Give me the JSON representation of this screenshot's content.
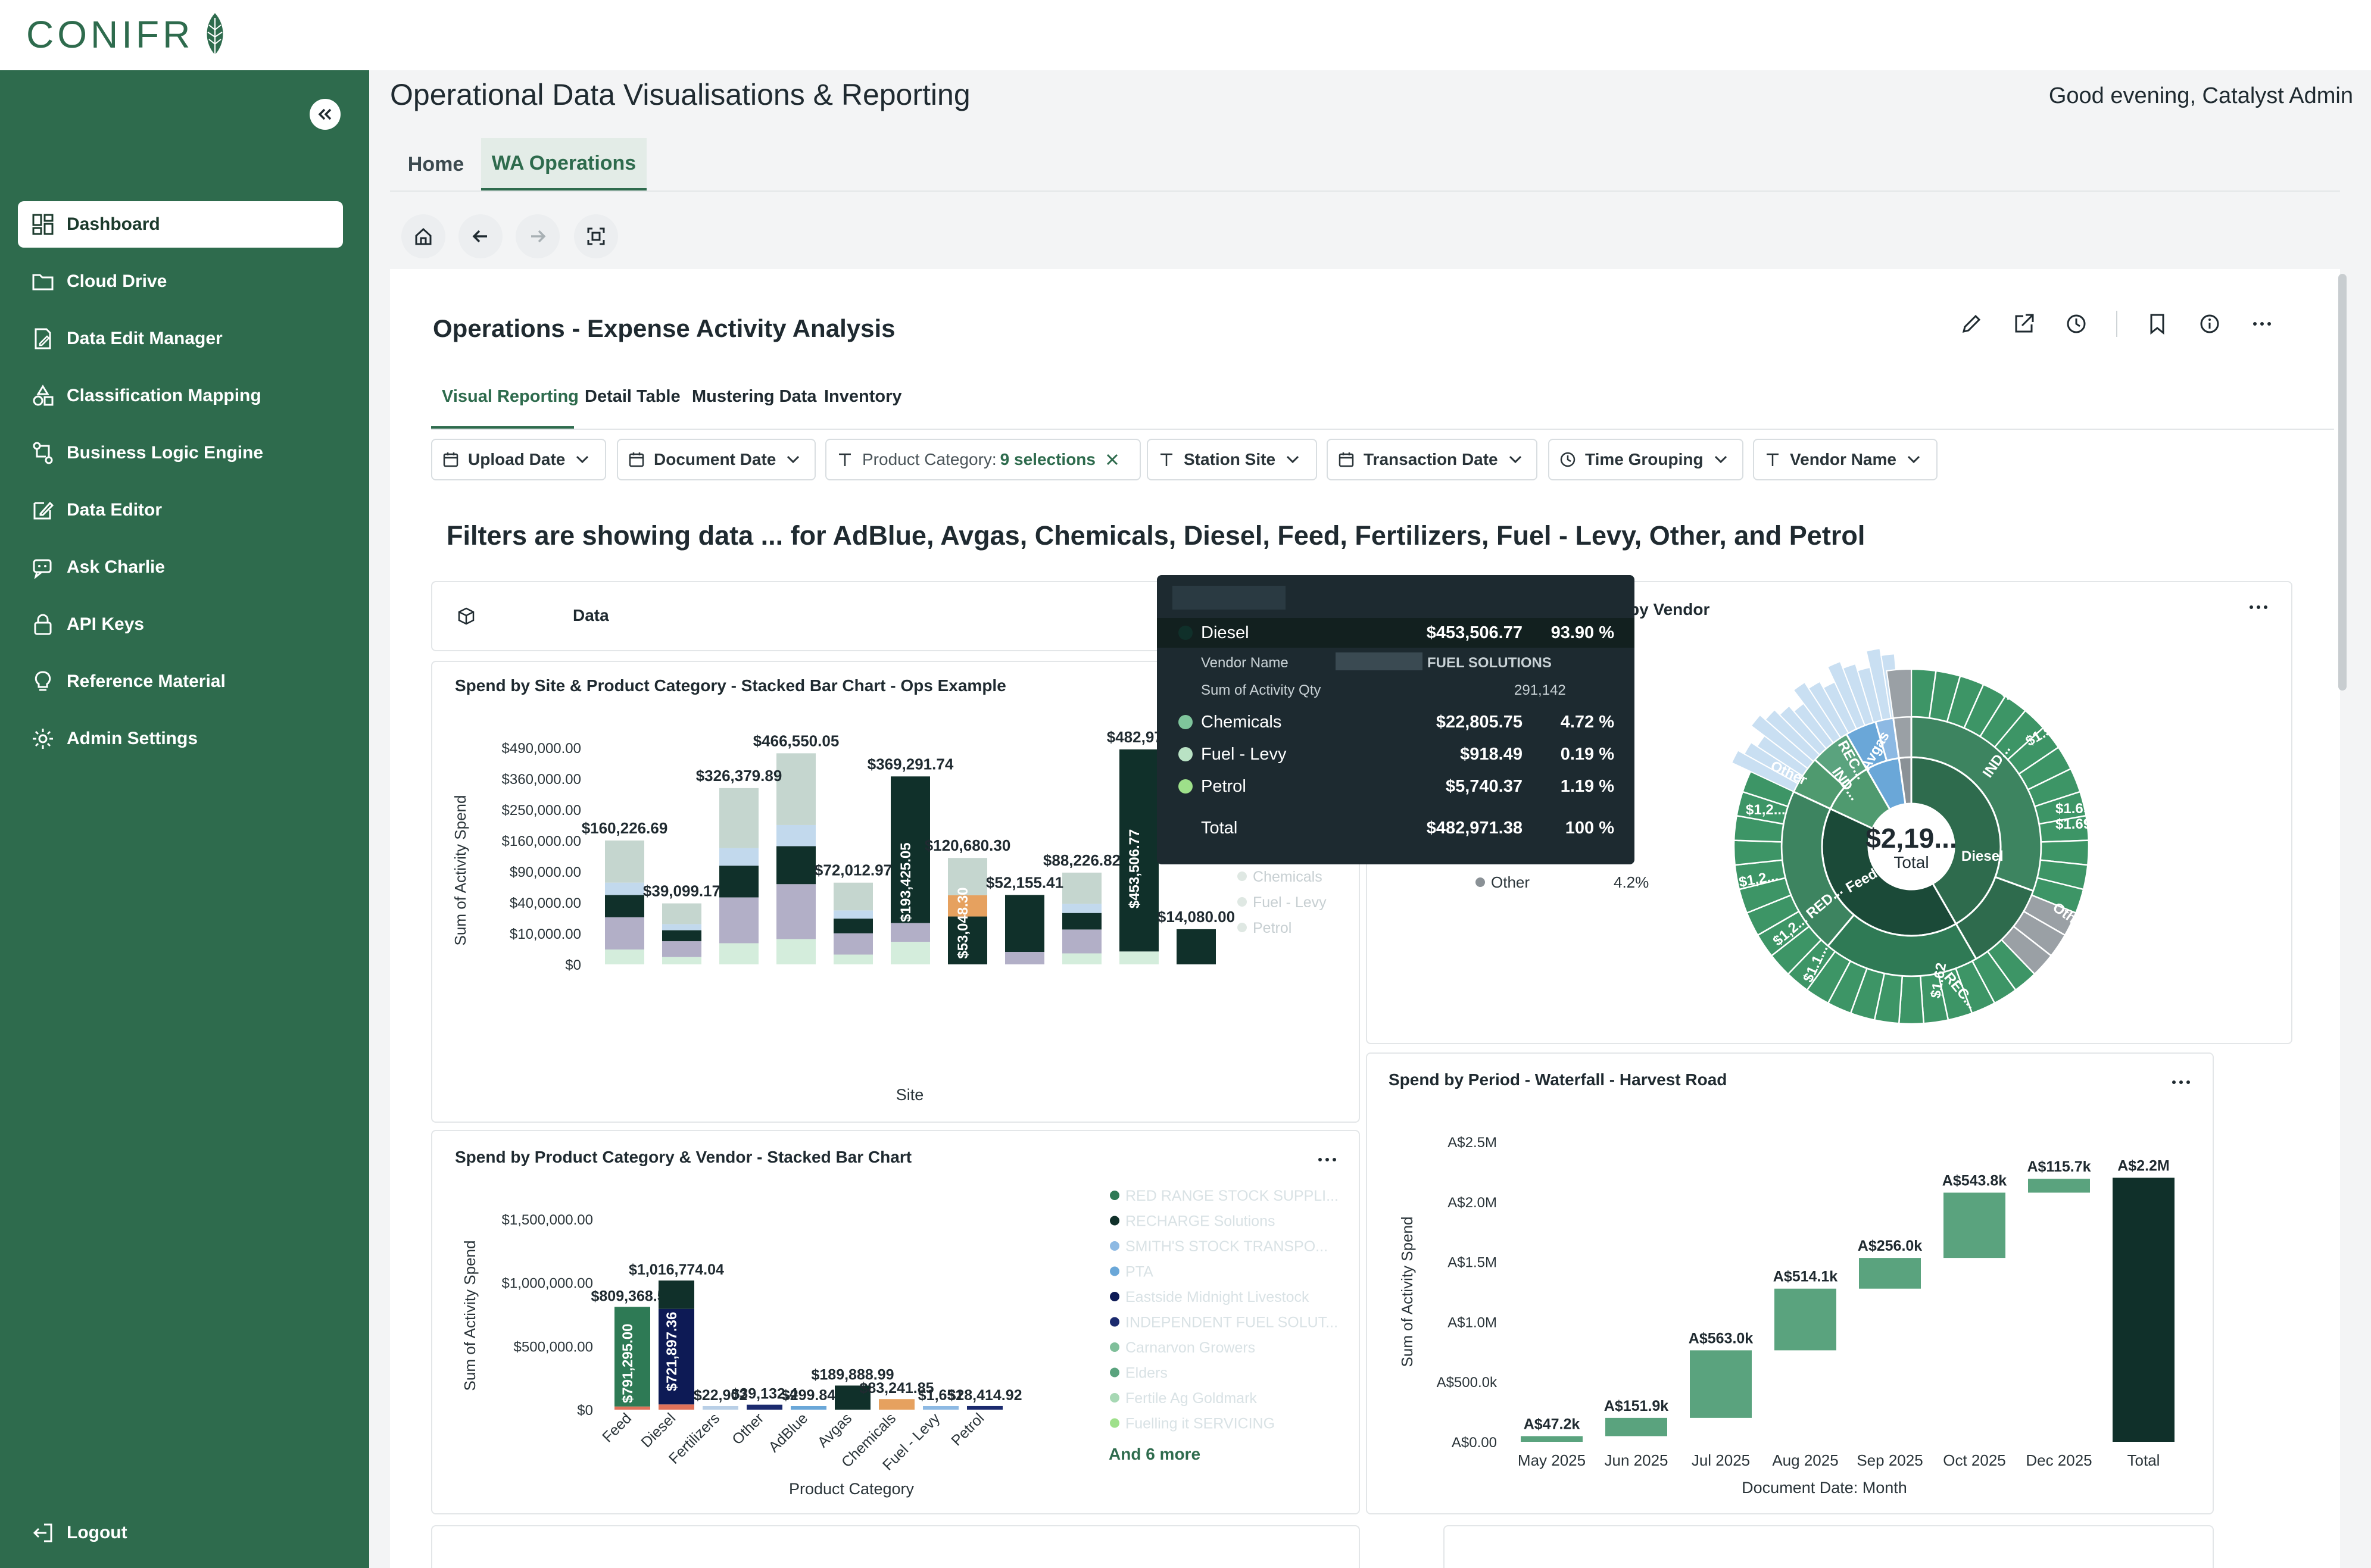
{
  "brand": {
    "logo_text": "CONIFR"
  },
  "header": {
    "title": "Operational Data Visualisations & Reporting",
    "greeting": "Good evening, Catalyst Admin"
  },
  "top_tabs": [
    {
      "label": "Home"
    },
    {
      "label": "WA Operations"
    }
  ],
  "sidebar": {
    "items": [
      {
        "label": "Dashboard",
        "icon": "dashboard-icon"
      },
      {
        "label": "Cloud Drive",
        "icon": "folder-icon"
      },
      {
        "label": "Data Edit Manager",
        "icon": "edit-doc-icon"
      },
      {
        "label": "Classification Mapping",
        "icon": "shapes-icon"
      },
      {
        "label": "Business Logic Engine",
        "icon": "flow-icon"
      },
      {
        "label": "Data Editor",
        "icon": "edit-icon"
      },
      {
        "label": "Ask Charlie",
        "icon": "chat-bot-icon"
      },
      {
        "label": "API Keys",
        "icon": "lock-icon"
      },
      {
        "label": "Reference Material",
        "icon": "lightbulb-icon"
      },
      {
        "label": "Admin Settings",
        "icon": "gear-icon"
      }
    ],
    "logout": "Logout"
  },
  "dashboard": {
    "title": "Operations - Expense Activity Analysis",
    "tabs": [
      {
        "label": "Visual Reporting"
      },
      {
        "label": "Detail Table"
      },
      {
        "label": "Mustering Data"
      },
      {
        "label": "Inventory"
      }
    ],
    "filters": [
      {
        "label": "Upload Date"
      },
      {
        "label": "Document Date"
      },
      {
        "label": "Product Category:",
        "value": "9 selections"
      },
      {
        "label": "Station Site"
      },
      {
        "label": "Transaction Date"
      },
      {
        "label": "Time Grouping"
      },
      {
        "label": "Vendor Name"
      }
    ],
    "filter_summary": "Filters are showing data ... for AdBlue, Avgas, Chemicals, Diesel, Feed, Fertilizers, Fuel - Levy, Other, and Petrol",
    "data_card_label": "Data"
  },
  "tooltip": {
    "rows": [
      {
        "name": "Diesel",
        "value": "$453,506.77",
        "pct": "93.90 %"
      },
      {
        "name": "Chemicals",
        "value": "$22,805.75",
        "pct": "4.72 %"
      },
      {
        "name": "Fuel - Levy",
        "value": "$918.49",
        "pct": "0.19 %"
      },
      {
        "name": "Petrol",
        "value": "$5,740.37",
        "pct": "1.19 %"
      }
    ],
    "vendor_label": "Vendor Name",
    "vendor_value": "FUEL SOLUTIONS",
    "qty_label": "Sum of Activity Qty",
    "qty_value": "291,142",
    "total_label": "Total",
    "total_value": "$482,971.38",
    "total_pct": "100 %"
  },
  "chart_data": [
    {
      "type": "bar",
      "title": "Spend by Site & Product Category - Stacked Bar Chart - Ops Example",
      "xlabel": "Site",
      "ylabel": "Sum of Activity Spend",
      "y_ticks": [
        "$490,000.00",
        "$360,000.00",
        "$250,000.00",
        "$160,000.00",
        "$90,000.00",
        "$40,000.00",
        "$10,000.00",
        "$0"
      ],
      "totals": [
        160226.69,
        39099.17,
        326379.89,
        466550.05,
        72012.97,
        369291.74,
        120680.3,
        52155.41,
        88226.82,
        482971.38,
        14080.0
      ],
      "total_labels": [
        "$160,226.69",
        "$39,099.17",
        "$326,379.89",
        "$466,550.05",
        "$72,012.97",
        "$369,291.74",
        "$120,680.30",
        "$52,155.41",
        "$88,226.82",
        "$482,971",
        "$14,080.00"
      ],
      "inner_labels": [
        {
          "bar": 5,
          "text": "$193,425.05"
        },
        {
          "bar": 6,
          "text": "$53,048.30"
        },
        {
          "bar": 9,
          "text": "$453,506.77"
        }
      ],
      "legend_visible": [
        "Chemicals",
        "Fuel - Levy",
        "Petrol"
      ]
    },
    {
      "type": "pie",
      "title": "by Vendor",
      "center_value": "$2,19...",
      "center_label": "Total",
      "ring_labels": [
        "Diesel",
        "Feed",
        "Avgas",
        "REC...",
        "IND...",
        "Other",
        "REC...",
        "IND...",
        "RED...",
        "$1.52",
        "$1.56",
        "$1.58",
        "$1.69",
        "$1.69",
        "$1,2...",
        "$1,2...",
        "$1,2...",
        "$1.1...",
        "$1.62",
        "Other",
        "Other"
      ],
      "legend": [
        {
          "name": "Other",
          "value": "4.2%"
        }
      ]
    },
    {
      "type": "bar",
      "title": "Spend by Product Category & Vendor - Stacked Bar Chart",
      "xlabel": "Product Category",
      "ylabel": "Sum of Activity Spend",
      "y_ticks": [
        "$1,500,000.00",
        "$1,000,000.00",
        "$500,000.00",
        "$0"
      ],
      "categories": [
        "Feed",
        "Diesel",
        "Fertilizers",
        "Other",
        "AdBlue",
        "Avgas",
        "Chemicals",
        "Fuel - Levy",
        "Petrol"
      ],
      "values": [
        809368.54,
        1016774.04,
        22902,
        39132.4,
        299.84,
        189888.99,
        83241.85,
        1651,
        28414.92
      ],
      "total_labels": [
        "$809,368.54",
        "$1,016,774.04",
        "$22,902",
        "$39,132.4",
        "$299.84",
        "$189,888.99",
        "$83,241.85",
        "$1,651",
        "$28,414.92"
      ],
      "inner_labels": [
        {
          "bar": 0,
          "text": "$791,295.00"
        },
        {
          "bar": 1,
          "text": "$721,897.36"
        }
      ],
      "legend": [
        "RED RANGE STOCK SUPPLI...",
        "RECHARGE Solutions",
        "SMITH'S STOCK TRANSPO...",
        "PTA",
        "Eastside Midnight Livestock",
        "INDEPENDENT FUEL SOLUT...",
        "Carnarvon Growers",
        "Elders",
        "Fertile Ag Goldmark",
        "Fuelling it SERVICING"
      ],
      "legend_more": "And 6 more"
    },
    {
      "type": "bar",
      "title": "Spend by Period - Waterfall - Harvest Road",
      "xlabel": "Document Date: Month",
      "ylabel": "Sum of Activity Spend",
      "y_ticks": [
        "A$2.5M",
        "A$2.0M",
        "A$1.5M",
        "A$1.0M",
        "A$500.0k",
        "A$0.00"
      ],
      "categories": [
        "May 2025",
        "Jun 2025",
        "Jul 2025",
        "Aug 2025",
        "Sep 2025",
        "Oct 2025",
        "Dec 2025",
        "Total"
      ],
      "values": [
        47200,
        151900,
        563000,
        514100,
        256000,
        543800,
        115700,
        2200000
      ],
      "labels": [
        "A$47.2k",
        "A$151.9k",
        "A$563.0k",
        "A$514.1k",
        "A$256.0k",
        "A$543.8k",
        "A$115.7k",
        "A$2.2M"
      ]
    }
  ],
  "colors": {
    "brand_green": "#2e6b4d",
    "dark_green": "#10302a",
    "bar_green": "#5aa37e",
    "lavender": "#b2afc7"
  }
}
